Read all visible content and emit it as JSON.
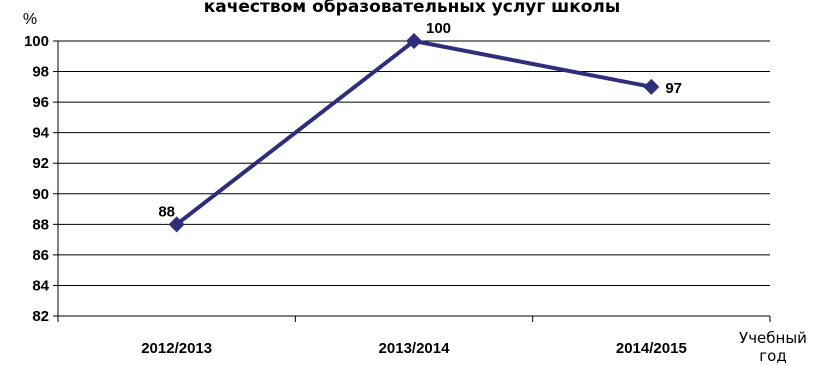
{
  "chart_data": {
    "type": "line",
    "title": "качеством образовательных услуг школы",
    "ylabel": "%",
    "xlabel_line1": "Учебный",
    "xlabel_line2": "год",
    "categories": [
      "2012/2013",
      "2013/2014",
      "2014/2015"
    ],
    "series": [
      {
        "values": [
          88,
          100,
          97
        ],
        "color": "#2e2f7a"
      }
    ],
    "ylim": [
      82,
      100
    ],
    "ytick_step": 2,
    "grid": true,
    "marker": "diamond"
  }
}
